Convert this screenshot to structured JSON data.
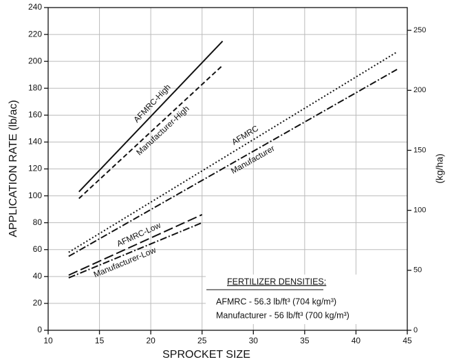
{
  "chart_data": {
    "type": "line",
    "ylabel": "APPLICATION RATE (lb/ac)",
    "xlabel": "SPROCKET SIZE",
    "y2label": "(kg/ha)",
    "xlim": [
      10,
      45
    ],
    "xticks": [
      10,
      15,
      20,
      25,
      30,
      35,
      40,
      45
    ],
    "ylim": [
      0,
      240
    ],
    "yticks": [
      0,
      20,
      40,
      60,
      80,
      100,
      120,
      140,
      160,
      180,
      200,
      220,
      240
    ],
    "y2lim": [
      0,
      269
    ],
    "y2ticks": [
      0,
      50,
      100,
      150,
      200,
      250
    ],
    "grid": true,
    "series": [
      {
        "name": "AFMRC-High",
        "color": "#111111",
        "dash": "solid",
        "x": [
          13,
          27
        ],
        "values": [
          103,
          215
        ]
      },
      {
        "name": "Manufacturer-High",
        "color": "#111111",
        "dash": "dashed",
        "x": [
          13,
          27
        ],
        "values": [
          98,
          197
        ]
      },
      {
        "name": "AFMRC",
        "color": "#111111",
        "dash": "dotted",
        "x": [
          12,
          44
        ],
        "values": [
          58,
          207
        ]
      },
      {
        "name": "Manufacturer",
        "color": "#111111",
        "dash": "dashdot",
        "x": [
          12,
          44
        ],
        "values": [
          55,
          194
        ]
      },
      {
        "name": "AFMRC-Low",
        "color": "#111111",
        "dash": "longdash",
        "x": [
          12,
          25
        ],
        "values": [
          41,
          86
        ]
      },
      {
        "name": "Manufacturer-Low",
        "color": "#111111",
        "dash": "dashdot",
        "x": [
          12,
          25
        ],
        "values": [
          39,
          80
        ]
      }
    ],
    "annotations": [
      "FERTILIZER DENSITIES:",
      "AFMRC - 56.3 lb/ft³ (704  kg/m³)",
      "Manufacturer - 56 lb/ft³ (700 kg/m³)"
    ]
  }
}
